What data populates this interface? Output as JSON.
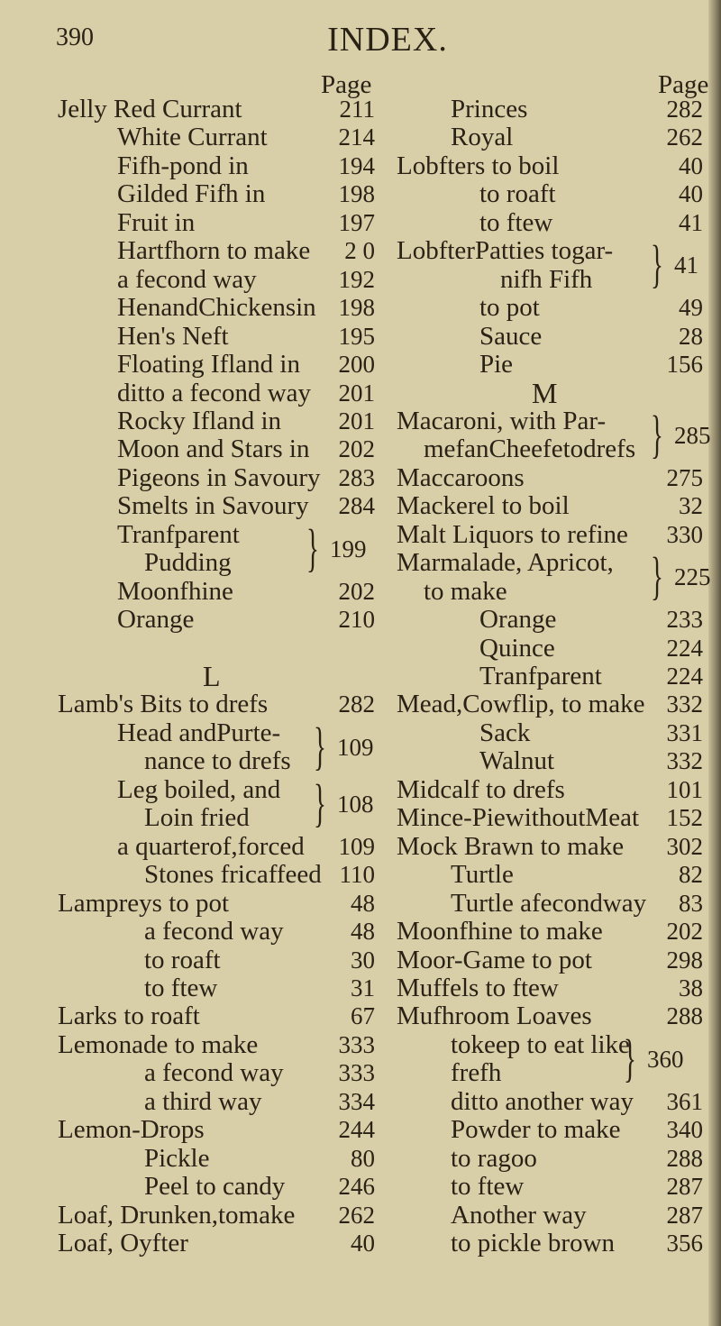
{
  "page_number": "390",
  "title": "INDEX.",
  "page_label": "Page",
  "left_column": [
    {
      "row": 0,
      "text": "Jelly Red Currant",
      "page": "211",
      "indent": 0
    },
    {
      "row": 1,
      "text": "White Currant",
      "page": "214",
      "indent": 1
    },
    {
      "row": 2,
      "text": "Fifh-pond in",
      "page": "194",
      "indent": 1
    },
    {
      "row": 3,
      "text": "Gilded Fifh in",
      "page": "198",
      "indent": 1
    },
    {
      "row": 4,
      "text": "Fruit in",
      "page": "197",
      "indent": 1
    },
    {
      "row": 5,
      "text": "Hartfhorn to make",
      "page": "2 0",
      "indent": 1
    },
    {
      "row": 6,
      "text": "a fecond way",
      "page": "192",
      "indent": 1
    },
    {
      "row": 7,
      "text": "HenandChickensin",
      "page": "198",
      "indent": 1
    },
    {
      "row": 8,
      "text": "Hen's Neft",
      "page": "195",
      "indent": 1
    },
    {
      "row": 9,
      "text": "Floating Ifland in",
      "page": "200",
      "indent": 1
    },
    {
      "row": 10,
      "text": "ditto a fecond way",
      "page": "201",
      "indent": 1
    },
    {
      "row": 11,
      "text": "Rocky Ifland in",
      "page": "201",
      "indent": 1
    },
    {
      "row": 12,
      "text": "Moon and Stars in",
      "page": "202",
      "indent": 1
    },
    {
      "row": 13,
      "text": "Pigeons in Savoury",
      "page": "283",
      "indent": 1
    },
    {
      "row": 14,
      "text": "Smelts in Savoury",
      "page": "284",
      "indent": 1
    },
    {
      "row": 15,
      "text": "Tranfparent",
      "page": "",
      "indent": 1
    },
    {
      "row": 16,
      "text": "Pudding",
      "page": "",
      "indent": 2
    },
    {
      "row": 17,
      "text": "Moonfhine",
      "page": "202",
      "indent": 1
    },
    {
      "row": 18,
      "text": "Orange",
      "page": "210",
      "indent": 1
    },
    {
      "row": 21,
      "text": "Lamb's Bits to drefs",
      "page": "282",
      "indent": 0
    },
    {
      "row": 22,
      "text": "Head andPurte-",
      "page": "",
      "indent": 1
    },
    {
      "row": 23,
      "text": "nance to drefs",
      "page": "",
      "indent": 2
    },
    {
      "row": 24,
      "text": "Leg boiled, and",
      "page": "",
      "indent": 1
    },
    {
      "row": 25,
      "text": "Loin fried",
      "page": "",
      "indent": 2
    },
    {
      "row": 26,
      "text": "a quarterof,forced",
      "page": "109",
      "indent": 1
    },
    {
      "row": 27,
      "text": "Stones fricaffeed",
      "page": "110",
      "indent": 2
    },
    {
      "row": 28,
      "text": "Lampreys to pot",
      "page": "48",
      "indent": 0
    },
    {
      "row": 29,
      "text": "a fecond way",
      "page": "48",
      "indent": 2
    },
    {
      "row": 30,
      "text": "to roaft",
      "page": "30",
      "indent": 2
    },
    {
      "row": 31,
      "text": "to ftew",
      "page": "31",
      "indent": 2
    },
    {
      "row": 32,
      "text": "Larks to roaft",
      "page": "67",
      "indent": 0
    },
    {
      "row": 33,
      "text": "Lemonade to make",
      "page": "333",
      "indent": 0
    },
    {
      "row": 34,
      "text": "a fecond way",
      "page": "333",
      "indent": 2
    },
    {
      "row": 35,
      "text": "a third way",
      "page": "334",
      "indent": 2
    },
    {
      "row": 36,
      "text": "Lemon-Drops",
      "page": "244",
      "indent": 0
    },
    {
      "row": 37,
      "text": "Pickle",
      "page": "80",
      "indent": 2
    },
    {
      "row": 38,
      "text": "Peel to candy",
      "page": "246",
      "indent": 2
    },
    {
      "row": 39,
      "text": "Loaf, Drunken,tomake",
      "page": "262",
      "indent": 0
    },
    {
      "row": 40,
      "text": "Loaf, Oyfter",
      "page": "40",
      "indent": 0
    }
  ],
  "left_braces": [
    {
      "row": 15,
      "page": "199"
    },
    {
      "row": 22,
      "page": "109"
    },
    {
      "row": 24,
      "page": "108"
    }
  ],
  "left_letter": {
    "row": 20,
    "text": "L"
  },
  "right_column": [
    {
      "row": 0,
      "text": "Princes",
      "page": "282",
      "indent": 2
    },
    {
      "row": 1,
      "text": "Royal",
      "page": "262",
      "indent": 2
    },
    {
      "row": 2,
      "text": "Lobfters to boil",
      "page": "40",
      "indent": 0
    },
    {
      "row": 3,
      "text": "to roaft",
      "page": "40",
      "indent": 3
    },
    {
      "row": 4,
      "text": "to ftew",
      "page": "41",
      "indent": 3
    },
    {
      "row": 5,
      "text": "LobfterPatties togar-",
      "page": "",
      "indent": 0
    },
    {
      "row": 6,
      "text": "nifh Fifh",
      "page": "",
      "indent": 4
    },
    {
      "row": 7,
      "text": "to pot",
      "page": "49",
      "indent": 3
    },
    {
      "row": 8,
      "text": "Sauce",
      "page": "28",
      "indent": 3
    },
    {
      "row": 9,
      "text": "Pie",
      "page": "156",
      "indent": 3
    },
    {
      "row": 11,
      "text": "Macaroni, with Par-",
      "page": "",
      "indent": 0
    },
    {
      "row": 12,
      "text": "mefanCheefetodrefs",
      "page": "",
      "indent": 1
    },
    {
      "row": 13,
      "text": "Maccaroons",
      "page": "275",
      "indent": 0
    },
    {
      "row": 14,
      "text": "Mackerel to boil",
      "page": "32",
      "indent": 0
    },
    {
      "row": 15,
      "text": "Malt Liquors to refine",
      "page": "330",
      "indent": 0
    },
    {
      "row": 16,
      "text": "Marmalade, Apricot,",
      "page": "",
      "indent": 0
    },
    {
      "row": 17,
      "text": "to make",
      "page": "",
      "indent": 1
    },
    {
      "row": 18,
      "text": "Orange",
      "page": "233",
      "indent": 3
    },
    {
      "row": 19,
      "text": "Quince",
      "page": "224",
      "indent": 3
    },
    {
      "row": 20,
      "text": "Tranfparent",
      "page": "224",
      "indent": 3
    },
    {
      "row": 21,
      "text": "Mead,Cowflip, to make",
      "page": "332",
      "indent": 0
    },
    {
      "row": 22,
      "text": "Sack",
      "page": "331",
      "indent": 3
    },
    {
      "row": 23,
      "text": "Walnut",
      "page": "332",
      "indent": 3
    },
    {
      "row": 24,
      "text": "Midcalf to drefs",
      "page": "101",
      "indent": 0
    },
    {
      "row": 25,
      "text": "Mince-PiewithoutMeat",
      "page": "152",
      "indent": 0
    },
    {
      "row": 26,
      "text": "Mock Brawn to make",
      "page": "302",
      "indent": 0
    },
    {
      "row": 27,
      "text": "Turtle",
      "page": "82",
      "indent": 2
    },
    {
      "row": 28,
      "text": "Turtle afecondway",
      "page": "83",
      "indent": 2
    },
    {
      "row": 29,
      "text": "Moonfhine to make",
      "page": "202",
      "indent": 0
    },
    {
      "row": 30,
      "text": "Moor-Game to pot",
      "page": "298",
      "indent": 0
    },
    {
      "row": 31,
      "text": "Muffels to ftew",
      "page": "38",
      "indent": 0
    },
    {
      "row": 32,
      "text": "Mufhroom Loaves",
      "page": "288",
      "indent": 0
    },
    {
      "row": 33,
      "text": "tokeep to eat like",
      "page": "",
      "indent": 2
    },
    {
      "row": 34,
      "text": "frefh",
      "page": "",
      "indent": 2
    },
    {
      "row": 35,
      "text": "ditto another way",
      "page": "361",
      "indent": 2
    },
    {
      "row": 36,
      "text": "Powder to make",
      "page": "340",
      "indent": 2
    },
    {
      "row": 37,
      "text": "to ragoo",
      "page": "288",
      "indent": 2
    },
    {
      "row": 38,
      "text": "to ftew",
      "page": "287",
      "indent": 2
    },
    {
      "row": 39,
      "text": "Another way",
      "page": "287",
      "indent": 2
    },
    {
      "row": 40,
      "text": "to pickle brown",
      "page": "356",
      "indent": 2
    }
  ],
  "right_braces": [
    {
      "row": 5,
      "page": "41"
    },
    {
      "row": 11,
      "page": "285"
    },
    {
      "row": 16,
      "page": "225"
    },
    {
      "row": 33,
      "page": "360"
    }
  ],
  "right_letter": {
    "row": 10,
    "text": "M"
  }
}
